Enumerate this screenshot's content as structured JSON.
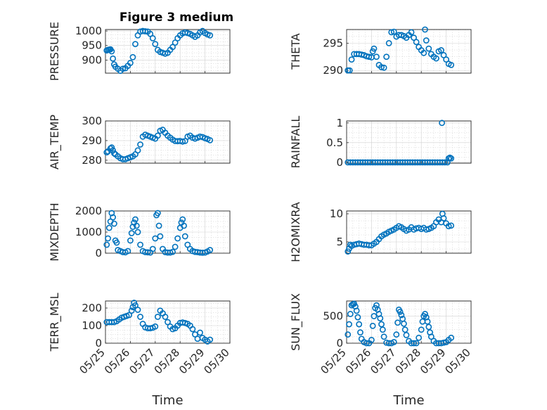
{
  "figure_title": "Figure 3 medium",
  "chart_data": {
    "type": "scatter",
    "x_label": "Time",
    "x_ticks": [
      "05/25",
      "05/26",
      "05/27",
      "05/28",
      "05/29",
      "05/30"
    ],
    "x_range_days": [
      0,
      5
    ],
    "marker": "open-circle",
    "color": "#0072bd",
    "grid": "on",
    "panels": [
      {
        "name": "pressure",
        "ylabel": "PRESSURE",
        "ylim": [
          855,
          1005
        ],
        "yticks": [
          900,
          950,
          1000
        ],
        "x": [
          0.05,
          0.1,
          0.15,
          0.2,
          0.25,
          0.3,
          0.35,
          0.4,
          0.5,
          0.6,
          0.7,
          0.8,
          0.9,
          1.0,
          1.1,
          1.2,
          1.3,
          1.4,
          1.5,
          1.6,
          1.7,
          1.8,
          1.9,
          2.0,
          2.1,
          2.2,
          2.3,
          2.4,
          2.5,
          2.6,
          2.7,
          2.8,
          2.9,
          3.0,
          3.1,
          3.2,
          3.3,
          3.4,
          3.5,
          3.6,
          3.7,
          3.8,
          3.9,
          4.0,
          4.1,
          4.2
        ],
        "y": [
          933,
          935,
          936,
          937,
          930,
          905,
          885,
          877,
          870,
          863,
          870,
          872,
          880,
          890,
          910,
          955,
          985,
          998,
          1000,
          999,
          998,
          990,
          975,
          955,
          935,
          928,
          925,
          922,
          925,
          935,
          945,
          960,
          975,
          985,
          992,
          995,
          993,
          990,
          985,
          980,
          985,
          995,
          1000,
          993,
          988,
          985
        ]
      },
      {
        "name": "theta",
        "ylabel": "THETA",
        "ylim": [
          289.5,
          297.5
        ],
        "yticks": [
          290,
          295
        ],
        "x": [
          0.05,
          0.12,
          0.2,
          0.3,
          0.4,
          0.5,
          0.6,
          0.7,
          0.8,
          0.9,
          1.0,
          1.05,
          1.1,
          1.2,
          1.3,
          1.4,
          1.5,
          1.6,
          1.7,
          1.8,
          1.9,
          2.0,
          2.1,
          2.2,
          2.3,
          2.4,
          2.5,
          2.6,
          2.7,
          2.8,
          2.9,
          3.0,
          3.1,
          3.15,
          3.2,
          3.3,
          3.4,
          3.5,
          3.6,
          3.7,
          3.8,
          3.9,
          4.0,
          4.1,
          4.2
        ],
        "y": [
          290.0,
          290.0,
          292.0,
          293.0,
          293.0,
          293.0,
          292.9,
          292.8,
          292.6,
          292.5,
          292.4,
          293.5,
          294,
          292.5,
          291,
          290.6,
          290.5,
          292.5,
          295,
          297,
          297.1,
          296.2,
          296.5,
          296.5,
          296.3,
          296,
          296.5,
          297,
          296,
          295.2,
          294.3,
          293.7,
          293.2,
          297.5,
          295.5,
          294,
          293,
          292.5,
          292.2,
          293.5,
          293.7,
          292.8,
          292,
          291.2,
          291.0
        ]
      },
      {
        "name": "air_temp",
        "ylabel": "AIR_TEMP",
        "ylim": [
          278.5,
          300
        ],
        "yticks": [
          280,
          290,
          300
        ],
        "x": [
          0.05,
          0.1,
          0.2,
          0.25,
          0.3,
          0.35,
          0.4,
          0.5,
          0.6,
          0.7,
          0.8,
          0.9,
          1.0,
          1.1,
          1.2,
          1.3,
          1.4,
          1.5,
          1.6,
          1.7,
          1.8,
          1.9,
          2.0,
          2.1,
          2.2,
          2.3,
          2.4,
          2.5,
          2.6,
          2.7,
          2.8,
          2.9,
          3.0,
          3.1,
          3.2,
          3.3,
          3.4,
          3.5,
          3.6,
          3.7,
          3.8,
          3.9,
          4.0,
          4.1,
          4.2
        ],
        "y": [
          284,
          284.5,
          286,
          286.5,
          285,
          283.5,
          283,
          282,
          281,
          280.5,
          280.5,
          281,
          281.5,
          282,
          283,
          285,
          288,
          292,
          293,
          292.5,
          292,
          291.5,
          291,
          292.5,
          295,
          295.5,
          294,
          292.5,
          291.5,
          290.5,
          289.8,
          289.7,
          289.8,
          289.5,
          289.8,
          292,
          292.5,
          291.5,
          291,
          291.5,
          292,
          291.8,
          291.2,
          290.8,
          290.2
        ]
      },
      {
        "name": "rainfall",
        "ylabel": "RAINFALL",
        "ylim": [
          -0.02,
          1.05
        ],
        "yticks": [
          0,
          0.5,
          1
        ],
        "x": [
          0.05,
          0.15,
          0.25,
          0.35,
          0.45,
          0.55,
          0.65,
          0.75,
          0.85,
          0.95,
          1.05,
          1.15,
          1.25,
          1.35,
          1.45,
          1.55,
          1.65,
          1.75,
          1.85,
          1.95,
          2.05,
          2.15,
          2.25,
          2.35,
          2.45,
          2.55,
          2.65,
          2.75,
          2.85,
          2.95,
          3.05,
          3.15,
          3.25,
          3.35,
          3.45,
          3.55,
          3.65,
          3.75,
          3.85,
          3.95,
          4.05,
          4.1,
          4.15,
          4.2,
          3.83
        ],
        "y": [
          0,
          0,
          0,
          0,
          0,
          0,
          0,
          0,
          0,
          0,
          0,
          0,
          0,
          0,
          0,
          0,
          0,
          0,
          0,
          0,
          0,
          0,
          0,
          0,
          0,
          0,
          0,
          0,
          0,
          0,
          0,
          0,
          0,
          0,
          0,
          0,
          0,
          0,
          0,
          0,
          0,
          0.1,
          0.12,
          0.1,
          1.0
        ]
      },
      {
        "name": "mixdepth",
        "ylabel": "MIXDEPTH",
        "ylim": [
          0,
          2000
        ],
        "yticks": [
          0,
          1000,
          2000
        ],
        "x": [
          0.05,
          0.1,
          0.15,
          0.2,
          0.25,
          0.3,
          0.35,
          0.4,
          0.45,
          0.5,
          0.6,
          0.7,
          0.8,
          0.9,
          1.0,
          1.05,
          1.1,
          1.15,
          1.2,
          1.25,
          1.3,
          1.4,
          1.5,
          1.6,
          1.7,
          1.8,
          1.9,
          2.0,
          2.05,
          2.1,
          2.15,
          2.2,
          2.3,
          2.4,
          2.5,
          2.6,
          2.7,
          2.8,
          2.9,
          3.0,
          3.05,
          3.1,
          3.15,
          3.2,
          3.3,
          3.4,
          3.5,
          3.6,
          3.7,
          3.8,
          3.9,
          4.0,
          4.1,
          4.2
        ],
        "y": [
          400,
          700,
          1200,
          1500,
          1900,
          1700,
          1400,
          600,
          500,
          150,
          100,
          50,
          40,
          100,
          600,
          950,
          1250,
          1450,
          1600,
          1300,
          1000,
          400,
          100,
          50,
          40,
          30,
          200,
          700,
          1800,
          1900,
          1300,
          800,
          200,
          50,
          30,
          30,
          60,
          300,
          700,
          1200,
          1450,
          1600,
          1300,
          800,
          400,
          200,
          100,
          60,
          50,
          30,
          20,
          30,
          80,
          150
        ]
      },
      {
        "name": "h2omixra",
        "ylabel": "H2OMIXRA",
        "ylim": [
          3,
          10.5
        ],
        "yticks": [
          5,
          10
        ],
        "x": [
          0.05,
          0.1,
          0.15,
          0.2,
          0.3,
          0.4,
          0.5,
          0.6,
          0.7,
          0.8,
          0.9,
          1.0,
          1.1,
          1.2,
          1.3,
          1.4,
          1.5,
          1.6,
          1.7,
          1.8,
          1.9,
          2.0,
          2.1,
          2.2,
          2.3,
          2.4,
          2.5,
          2.6,
          2.7,
          2.8,
          2.9,
          3.0,
          3.1,
          3.2,
          3.3,
          3.4,
          3.5,
          3.6,
          3.7,
          3.8,
          3.85,
          3.9,
          4.0,
          4.1,
          4.2
        ],
        "y": [
          3.3,
          3.8,
          4.5,
          4.3,
          4.5,
          4.6,
          4.7,
          4.6,
          4.5,
          4.5,
          4.4,
          4.4,
          4.7,
          5.0,
          5.5,
          6.0,
          6.3,
          6.5,
          6.8,
          7.0,
          7.2,
          7.5,
          7.8,
          7.6,
          7.3,
          7.0,
          7.2,
          7.6,
          7.2,
          7.4,
          7.5,
          7.3,
          7.5,
          7.2,
          7.3,
          7.5,
          7.8,
          8.5,
          9.0,
          8.5,
          10.0,
          9.2,
          8.3,
          7.8,
          7.9
        ]
      },
      {
        "name": "terr_msl",
        "ylabel": "TERR_MSL",
        "ylim": [
          0,
          240
        ],
        "yticks": [
          0,
          100,
          200
        ],
        "x": [
          0.05,
          0.15,
          0.25,
          0.35,
          0.45,
          0.55,
          0.65,
          0.75,
          0.85,
          0.95,
          1.05,
          1.1,
          1.15,
          1.2,
          1.3,
          1.4,
          1.5,
          1.6,
          1.7,
          1.8,
          1.9,
          2.0,
          2.1,
          2.2,
          2.3,
          2.4,
          2.5,
          2.6,
          2.7,
          2.8,
          2.9,
          3.0,
          3.1,
          3.2,
          3.3,
          3.4,
          3.5,
          3.6,
          3.7,
          3.8,
          3.9,
          4.0,
          4.1,
          4.2
        ],
        "y": [
          120,
          120,
          120,
          120,
          125,
          135,
          145,
          150,
          155,
          160,
          185,
          205,
          230,
          215,
          190,
          150,
          110,
          90,
          85,
          85,
          88,
          95,
          150,
          185,
          170,
          150,
          120,
          95,
          80,
          85,
          100,
          115,
          118,
          115,
          110,
          100,
          80,
          50,
          25,
          60,
          30,
          20,
          10,
          20
        ]
      },
      {
        "name": "sun_flux",
        "ylabel": "SUN_FLUX",
        "ylim": [
          0,
          780
        ],
        "yticks": [
          0,
          500
        ],
        "x": [
          0.05,
          0.1,
          0.15,
          0.2,
          0.25,
          0.3,
          0.35,
          0.4,
          0.45,
          0.5,
          0.55,
          0.6,
          0.7,
          0.8,
          0.9,
          1.0,
          1.05,
          1.1,
          1.15,
          1.2,
          1.25,
          1.3,
          1.35,
          1.4,
          1.45,
          1.5,
          1.6,
          1.7,
          1.8,
          1.9,
          2.0,
          2.05,
          2.1,
          2.15,
          2.2,
          2.25,
          2.3,
          2.35,
          2.4,
          2.5,
          2.6,
          2.7,
          2.8,
          2.9,
          3.0,
          3.05,
          3.1,
          3.15,
          3.2,
          3.25,
          3.3,
          3.35,
          3.4,
          3.5,
          3.6,
          3.7,
          3.8,
          3.9,
          4.0,
          4.1,
          4.2
        ],
        "y": [
          160,
          350,
          540,
          700,
          720,
          730,
          680,
          600,
          480,
          350,
          200,
          80,
          20,
          0,
          0,
          60,
          320,
          500,
          650,
          700,
          620,
          540,
          460,
          350,
          250,
          120,
          10,
          0,
          0,
          20,
          160,
          380,
          620,
          580,
          520,
          450,
          360,
          250,
          150,
          40,
          0,
          0,
          0,
          100,
          250,
          400,
          500,
          540,
          480,
          400,
          300,
          200,
          120,
          40,
          0,
          0,
          0,
          10,
          20,
          60,
          100
        ]
      }
    ]
  }
}
